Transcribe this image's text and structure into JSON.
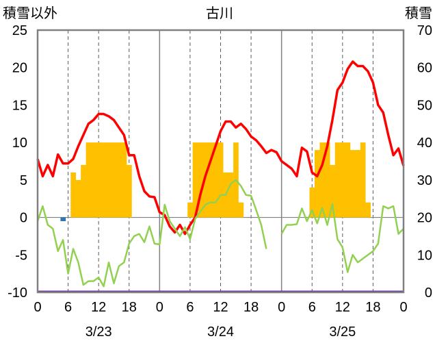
{
  "chart_data": {
    "type": "bar+line",
    "title": "古川",
    "y_left_label": "積雪以外",
    "y_right_label": "積雪",
    "y_left_lim": [
      -10,
      25
    ],
    "y_left_ticks": [
      "25",
      "20",
      "15",
      "10",
      "5",
      "0",
      "-5",
      "-10"
    ],
    "y_right_lim": [
      0,
      70
    ],
    "y_right_ticks": [
      "70",
      "60",
      "50",
      "40",
      "30",
      "20",
      "10",
      "0"
    ],
    "x_hours_total": 72,
    "x_tick_labels": [
      "0",
      "6",
      "12",
      "18",
      "0",
      "6",
      "12",
      "18",
      "0",
      "6",
      "12",
      "18",
      "0"
    ],
    "date_labels": [
      "3/23",
      "3/24",
      "3/25"
    ],
    "grid": "dashed vertical at 6h marks, horizontal at y=0",
    "colors": {
      "temperature": "#ff0000",
      "green_series": "#92d050",
      "bars": "#ffc000",
      "negative_bar": "#2e75b6",
      "bottom_line": "#7030a0",
      "frame": "#808080"
    },
    "bars": [
      {
        "h": 5,
        "v": -0.5,
        "color": "#2e75b6"
      },
      {
        "h": 7,
        "v": 6
      },
      {
        "h": 8,
        "v": 5
      },
      {
        "h": 9,
        "v": 7
      },
      {
        "h": 10,
        "v": 10
      },
      {
        "h": 11,
        "v": 10
      },
      {
        "h": 12,
        "v": 10
      },
      {
        "h": 13,
        "v": 10
      },
      {
        "h": 14,
        "v": 10
      },
      {
        "h": 15,
        "v": 10
      },
      {
        "h": 16,
        "v": 10
      },
      {
        "h": 17,
        "v": 10
      },
      {
        "h": 18,
        "v": 7
      },
      {
        "h": 30,
        "v": 2
      },
      {
        "h": 31,
        "v": 10
      },
      {
        "h": 32,
        "v": 10
      },
      {
        "h": 33,
        "v": 10
      },
      {
        "h": 34,
        "v": 10
      },
      {
        "h": 35,
        "v": 10
      },
      {
        "h": 36,
        "v": 10
      },
      {
        "h": 37,
        "v": 6
      },
      {
        "h": 38,
        "v": 6
      },
      {
        "h": 39,
        "v": 10
      },
      {
        "h": 40,
        "v": 2
      },
      {
        "h": 54,
        "v": 4
      },
      {
        "h": 55,
        "v": 9
      },
      {
        "h": 56,
        "v": 10
      },
      {
        "h": 57,
        "v": 10
      },
      {
        "h": 58,
        "v": 7
      },
      {
        "h": 59,
        "v": 10
      },
      {
        "h": 60,
        "v": 10
      },
      {
        "h": 61,
        "v": 10
      },
      {
        "h": 62,
        "v": 9
      },
      {
        "h": 63,
        "v": 9
      },
      {
        "h": 64,
        "v": 10
      },
      {
        "h": 65,
        "v": 2
      }
    ],
    "series": [
      {
        "color": "#ff0000",
        "points": [
          [
            0,
            7.8
          ],
          [
            1,
            5.5
          ],
          [
            2,
            7
          ],
          [
            3,
            5.5
          ],
          [
            4,
            8.4
          ],
          [
            5,
            7.2
          ],
          [
            6,
            7.2
          ],
          [
            7,
            7.8
          ],
          [
            8,
            9.5
          ],
          [
            9,
            11
          ],
          [
            10,
            12.5
          ],
          [
            11,
            13
          ],
          [
            12,
            13.8
          ],
          [
            13,
            13.8
          ],
          [
            14,
            13.5
          ],
          [
            15,
            13
          ],
          [
            16,
            12
          ],
          [
            17,
            11
          ],
          [
            18,
            8.3
          ],
          [
            19,
            8.3
          ],
          [
            20,
            5.5
          ],
          [
            21,
            3.5
          ],
          [
            22,
            2.8
          ],
          [
            23,
            2.7
          ],
          [
            24,
            0.7
          ],
          [
            25,
            0.3
          ],
          [
            26,
            -1.2
          ],
          [
            27,
            -2
          ],
          [
            28,
            -1
          ],
          [
            29,
            -2.2
          ],
          [
            30,
            -1
          ],
          [
            31,
            0
          ],
          [
            32,
            3
          ],
          [
            33,
            5.5
          ],
          [
            34,
            7.5
          ],
          [
            35,
            9.5
          ],
          [
            36,
            11.5
          ],
          [
            37,
            12.8
          ],
          [
            38,
            12.8
          ],
          [
            39,
            12
          ],
          [
            40,
            12.5
          ],
          [
            41,
            11.8
          ],
          [
            42,
            10.8
          ],
          [
            43,
            10.3
          ],
          [
            44,
            9.5
          ],
          [
            45,
            8.6
          ],
          [
            46,
            9
          ],
          [
            47,
            8.7
          ],
          [
            48,
            7.5
          ],
          [
            49,
            7
          ],
          [
            50,
            6.5
          ],
          [
            51,
            5.5
          ],
          [
            52,
            9.3
          ],
          [
            53,
            8.8
          ],
          [
            54,
            6
          ],
          [
            55,
            5.5
          ],
          [
            56,
            7
          ],
          [
            57,
            9.5
          ],
          [
            58,
            13
          ],
          [
            59,
            17
          ],
          [
            60,
            18
          ],
          [
            61,
            19.8
          ],
          [
            62,
            20.8
          ],
          [
            63,
            20.2
          ],
          [
            64,
            20.2
          ],
          [
            65,
            19.5
          ],
          [
            66,
            18
          ],
          [
            67,
            15
          ],
          [
            68,
            14
          ],
          [
            69,
            11
          ],
          [
            70,
            8.3
          ],
          [
            71,
            9.2
          ],
          [
            72,
            6.9
          ]
        ]
      },
      {
        "color": "#92d050",
        "segments": [
          [
            [
              0,
              -0.5
            ],
            [
              1,
              1.5
            ],
            [
              2,
              -1
            ],
            [
              3,
              -1.5
            ],
            [
              4,
              -4.5
            ],
            [
              5,
              -3
            ],
            [
              6,
              -7.5
            ],
            [
              7,
              -4.2
            ],
            [
              8,
              -6
            ],
            [
              9,
              -9
            ],
            [
              10,
              -8.5
            ],
            [
              11,
              -8.5
            ],
            [
              12,
              -8
            ],
            [
              13,
              -9.2
            ],
            [
              14,
              -6
            ],
            [
              15,
              -8.8
            ],
            [
              16,
              -6.5
            ],
            [
              17,
              -6
            ],
            [
              18,
              -3.5
            ],
            [
              19,
              -2.5
            ],
            [
              20,
              -2.2
            ],
            [
              21,
              -3.3
            ],
            [
              22,
              -1.2
            ],
            [
              23,
              -3.5
            ],
            [
              24,
              -3.6
            ],
            [
              25,
              1.7
            ],
            [
              26,
              -0.5
            ],
            [
              27,
              -1.5
            ],
            [
              28,
              -2.5
            ],
            [
              29,
              -1.3
            ],
            [
              30,
              -2.9
            ],
            [
              31,
              -0.2
            ],
            [
              32,
              0.8
            ],
            [
              33,
              1.7
            ],
            [
              34,
              2
            ],
            [
              35,
              2
            ],
            [
              36,
              3
            ],
            [
              37,
              3
            ],
            [
              38,
              4.5
            ],
            [
              39,
              5
            ],
            [
              40,
              4.2
            ],
            [
              41,
              3
            ],
            [
              42,
              2.9
            ],
            [
              43,
              1
            ],
            [
              44,
              -1
            ],
            [
              45,
              -4.2
            ]
          ],
          [
            [
              48,
              -2.2
            ],
            [
              49,
              -1
            ],
            [
              50,
              -1
            ],
            [
              51,
              -0.9
            ],
            [
              52,
              1.2
            ],
            [
              53,
              -0.5
            ],
            [
              54,
              1
            ],
            [
              55,
              -0.8
            ],
            [
              56,
              1.3
            ],
            [
              57,
              -1
            ],
            [
              58,
              1.8
            ],
            [
              59,
              -2.9
            ],
            [
              60,
              -4
            ],
            [
              61,
              -7.3
            ],
            [
              62,
              -5
            ],
            [
              63,
              -6
            ],
            [
              64,
              -5.5
            ],
            [
              65,
              -5
            ],
            [
              66,
              -4.5
            ],
            [
              67,
              -3.5
            ],
            [
              68,
              1.5
            ],
            [
              69,
              1.2
            ],
            [
              70,
              1.5
            ],
            [
              71,
              -2.2
            ],
            [
              72,
              -1.5
            ]
          ]
        ]
      }
    ]
  }
}
